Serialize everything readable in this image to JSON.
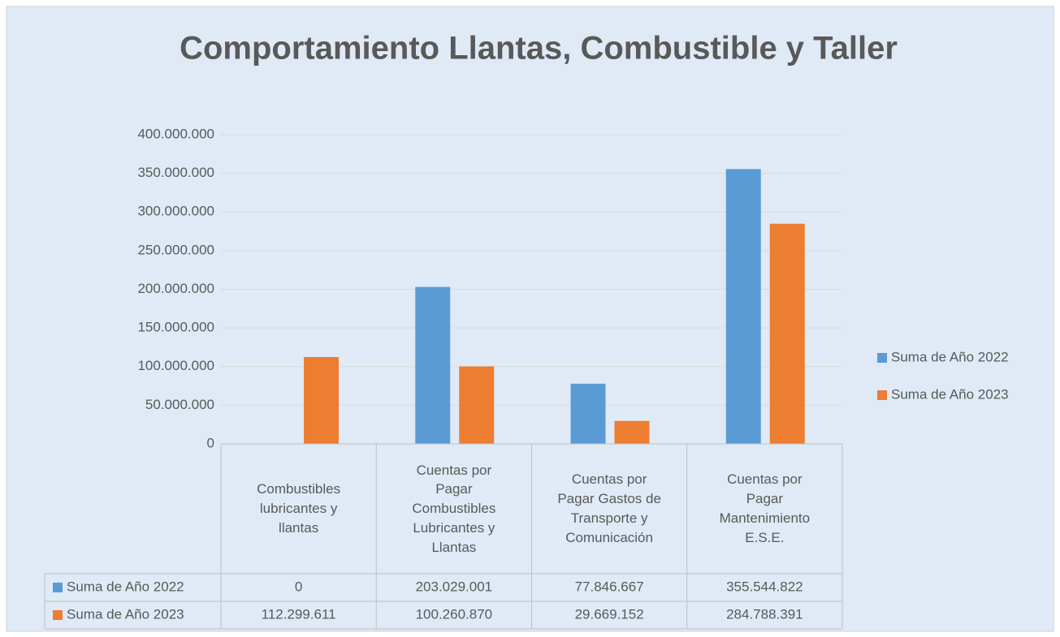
{
  "chart_data": {
    "type": "bar",
    "title": "Comportamiento Llantas, Combustible y Taller",
    "categories": [
      "Combustibles lubricantes y llantas",
      "Cuentas por Pagar Combustibles Lubricantes y Llantas",
      "Cuentas por Pagar Gastos de Transporte y Comunicación",
      "Cuentas por Pagar Mantenimiento E.S.E."
    ],
    "series": [
      {
        "name": "Suma de Año 2022",
        "color": "#5b9bd5",
        "values": [
          0,
          203029001,
          77846667,
          355544822
        ],
        "value_labels": [
          "0",
          "203.029.001",
          "77.846.667",
          "355.544.822"
        ]
      },
      {
        "name": "Suma de Año 2023",
        "color": "#ed7d31",
        "values": [
          112299611,
          100260870,
          29669152,
          284788391
        ],
        "value_labels": [
          "112.299.611",
          "100.260.870",
          "29.669.152",
          "284.788.391"
        ]
      }
    ],
    "ylim": [
      0,
      400000000
    ],
    "yticks": [
      0,
      {
        "value": 50000000,
        "label": "50.000.000"
      },
      {
        "value": 100000000,
        "label": "100.000.000"
      },
      {
        "value": 150000000,
        "label": "150.000.000"
      },
      {
        "value": 200000000,
        "label": "200.000.000"
      },
      {
        "value": 250000000,
        "label": "250.000.000"
      },
      {
        "value": 300000000,
        "label": "300.000.000"
      },
      {
        "value": 350000000,
        "label": "350.000.000"
      },
      {
        "value": 400000000,
        "label": "400.000.000"
      }
    ],
    "grid": true,
    "legend": "right",
    "data_table": true
  }
}
